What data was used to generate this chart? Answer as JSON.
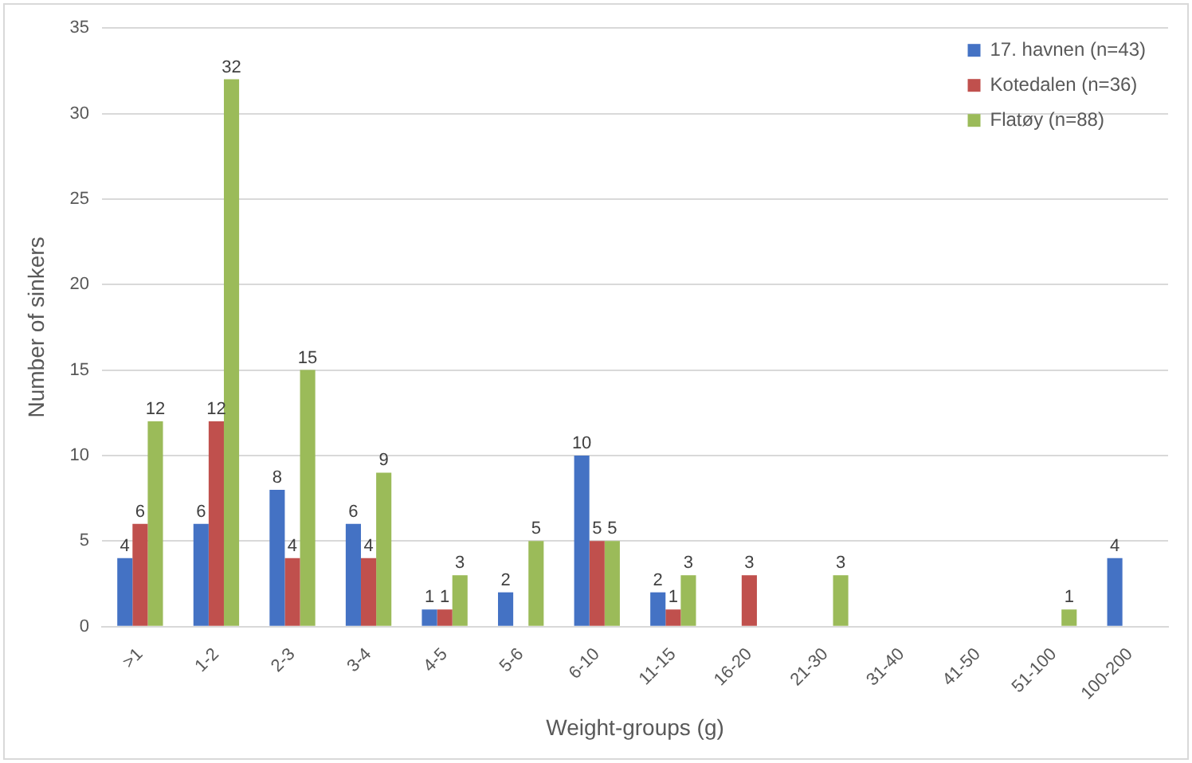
{
  "chart_data": {
    "type": "bar",
    "xlabel": "Weight-groups (g)",
    "ylabel": "Number of sinkers",
    "categories": [
      ">1",
      "1-2",
      "2-3",
      "3-4",
      "4-5",
      "5-6",
      "6-10",
      "11-15",
      "16-20",
      "21-30",
      "31-40",
      "41-50",
      "51-100",
      "100-200"
    ],
    "series": [
      {
        "name": "17. havnen (n=43)",
        "color": "#4472c4",
        "values": [
          4,
          6,
          8,
          6,
          1,
          2,
          10,
          2,
          null,
          null,
          null,
          null,
          null,
          4
        ]
      },
      {
        "name": "Kotedalen (n=36)",
        "color": "#c0504d",
        "values": [
          6,
          12,
          4,
          4,
          1,
          null,
          5,
          1,
          3,
          null,
          null,
          null,
          null,
          null
        ]
      },
      {
        "name": "Flatøy (n=88)",
        "color": "#9bbb59",
        "values": [
          12,
          32,
          15,
          9,
          3,
          5,
          5,
          3,
          null,
          3,
          null,
          null,
          1,
          null
        ]
      }
    ],
    "ylim": [
      0,
      35
    ],
    "yticks": [
      0,
      5,
      10,
      15,
      20,
      25,
      30,
      35
    ],
    "grid": "y",
    "legend": "top right",
    "data_labels": true
  }
}
